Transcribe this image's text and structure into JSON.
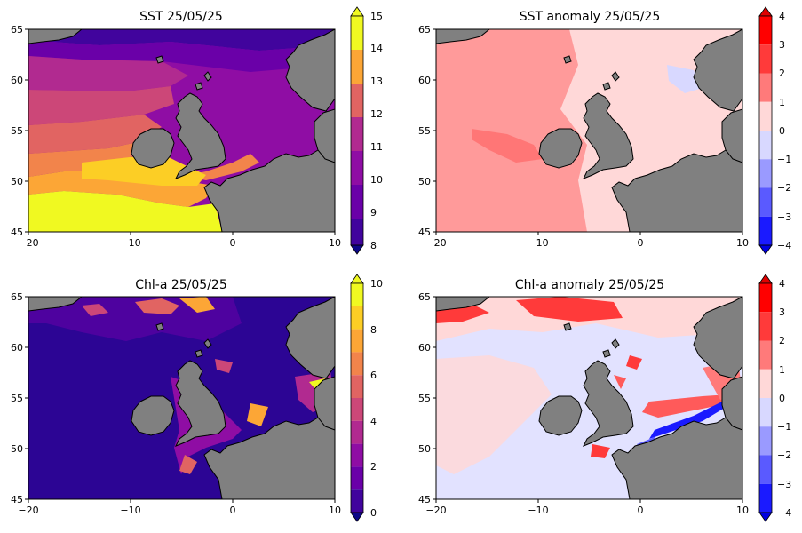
{
  "panels": [
    {
      "title": "SST 25/05/25",
      "colorbar": [
        "8",
        "9",
        "10",
        "11",
        "12",
        "13",
        "14",
        "15"
      ],
      "x_ticks": [
        "−20",
        "−10",
        "0",
        "10"
      ],
      "y_ticks": [
        "45",
        "50",
        "55",
        "60",
        "65"
      ],
      "palette": [
        "#0d0887",
        "#41049d",
        "#6a00a8",
        "#8f0da4",
        "#b12a90",
        "#cc4778",
        "#e16462",
        "#f2844b",
        "#fca636",
        "#fcce25",
        "#f0f921"
      ]
    },
    {
      "title": "SST anomaly 25/05/25",
      "colorbar": [
        "−4",
        "−3",
        "−2",
        "−1",
        "0",
        "1",
        "2",
        "3",
        "4"
      ],
      "x_ticks": [
        "−20",
        "−10",
        "0",
        "10"
      ],
      "y_ticks": [
        "45",
        "50",
        "55",
        "60",
        "65"
      ],
      "palette": [
        "#0000ff",
        "#5a5aff",
        "#9a9aff",
        "#d8d8ff",
        "#ffd8d8",
        "#ff9a9a",
        "#ff5a5a",
        "#ff0000"
      ]
    },
    {
      "title": "Chl-a 25/05/25",
      "colorbar": [
        "0",
        "2",
        "4",
        "6",
        "8",
        "10"
      ],
      "x_ticks": [
        "−20",
        "−10",
        "0",
        "10"
      ],
      "y_ticks": [
        "45",
        "50",
        "55",
        "60",
        "65"
      ],
      "palette": [
        "#0d0887",
        "#41049d",
        "#6a00a8",
        "#8f0da4",
        "#b12a90",
        "#cc4778",
        "#e16462",
        "#f2844b",
        "#fca636",
        "#fcce25",
        "#f0f921"
      ]
    },
    {
      "title": "Chl-a anomaly 25/05/25",
      "colorbar": [
        "−4",
        "−3",
        "−2",
        "−1",
        "0",
        "1",
        "2",
        "3",
        "4"
      ],
      "x_ticks": [
        "−20",
        "−10",
        "0",
        "10"
      ],
      "y_ticks": [
        "45",
        "50",
        "55",
        "60",
        "65"
      ],
      "palette": [
        "#0000ff",
        "#5a5aff",
        "#9a9aff",
        "#d8d8ff",
        "#ffd8d8",
        "#ff9a9a",
        "#ff5a5a",
        "#ff0000"
      ]
    }
  ],
  "colors": {
    "land": "#808080",
    "coast": "#000000"
  }
}
